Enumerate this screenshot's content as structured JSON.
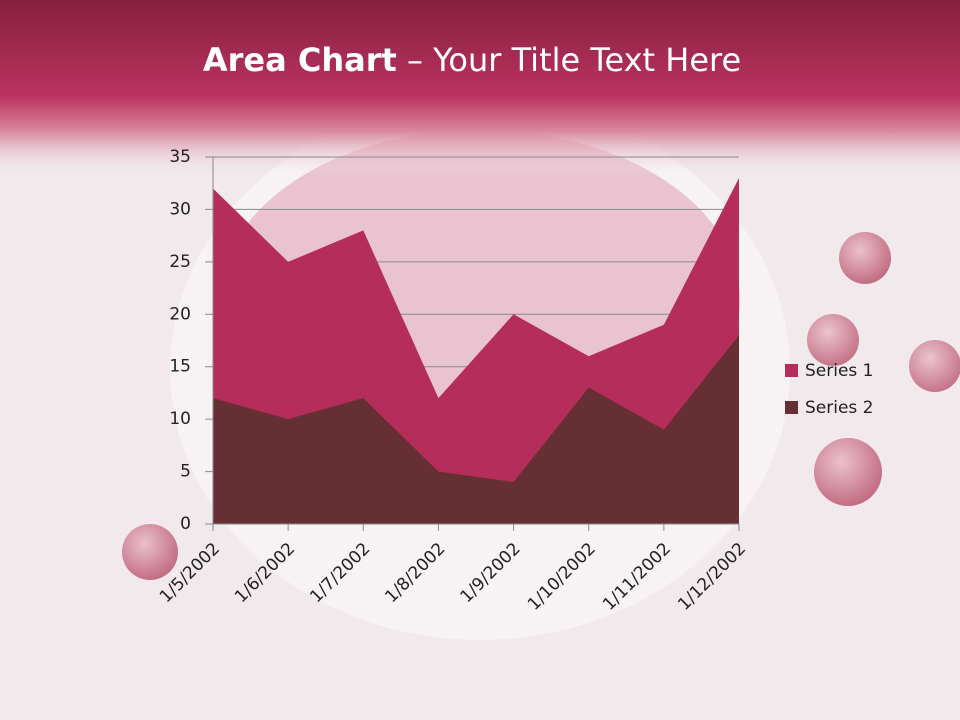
{
  "chart_data": {
    "type": "area",
    "title": {
      "bold": "Area Chart",
      "regular": "– Your Title Text Here"
    },
    "categories": [
      "1/5/2002",
      "1/6/2002",
      "1/7/2002",
      "1/8/2002",
      "1/9/2002",
      "1/10/2002",
      "1/11/2002",
      "1/12/2002"
    ],
    "series": [
      {
        "name": "Series 1",
        "color": "#b52d5a",
        "values": [
          32,
          25,
          28,
          12,
          20,
          16,
          19,
          33
        ]
      },
      {
        "name": "Series 2",
        "color": "#652f33",
        "values": [
          12,
          10,
          12,
          5,
          4,
          13,
          9,
          18
        ]
      }
    ],
    "ylim": [
      0,
      35
    ],
    "yticks": [
      0,
      5,
      10,
      15,
      20,
      25,
      30,
      35
    ],
    "grid": true,
    "legend": "right"
  }
}
